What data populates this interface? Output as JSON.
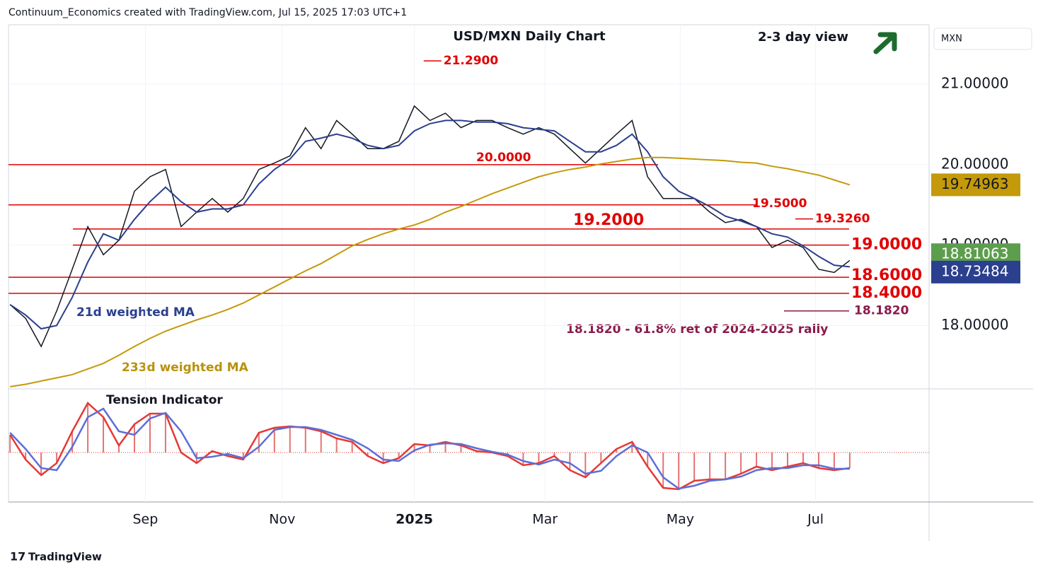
{
  "header": "Continuum_Economics created with TradingView.com, Jul 15, 2025 17:03 UTC+1",
  "footer": "TradingView",
  "chart_data": {
    "type": "line",
    "title": "USD/MXN Daily Chart",
    "subtitle": "2-3 day view",
    "axis_label": "MXN",
    "categories": [
      null,
      null,
      null,
      null,
      null,
      null,
      null,
      null,
      null,
      null,
      null,
      null,
      null,
      null,
      null,
      null,
      null,
      null,
      null,
      null,
      null,
      null,
      null,
      null,
      null,
      null,
      null,
      null,
      null,
      null,
      null,
      null,
      null,
      null,
      null,
      null,
      null,
      null,
      null,
      null,
      null,
      null,
      null,
      null,
      null,
      null,
      null,
      null,
      null,
      null,
      null,
      null,
      null,
      null,
      null
    ],
    "xlim": [
      -0.1,
      59.1
    ],
    "xticks": [
      {
        "value": 8.7,
        "label": "Sep"
      },
      {
        "value": 17.5,
        "label": "Nov"
      },
      {
        "value": 26,
        "label": "2025"
      },
      {
        "value": 34.4,
        "label": "Mar"
      },
      {
        "value": 43.1,
        "label": "May"
      },
      {
        "value": 51.8,
        "label": "Jul"
      }
    ],
    "ylim": [
      17.23,
      21.74
    ],
    "yticks": [
      {
        "value": 21,
        "label": "21.00000"
      },
      {
        "value": 20,
        "label": "20.00000"
      },
      {
        "value": 19,
        "label": "19.00000"
      },
      {
        "value": 18,
        "label": "18.00000"
      }
    ],
    "grid": true,
    "series": [
      {
        "name": "USD/MXN",
        "color": "#131722",
        "values": [
          18.26,
          18.09,
          17.74,
          18.18,
          18.7,
          19.23,
          18.88,
          19.06,
          19.67,
          19.85,
          19.94,
          19.23,
          19.41,
          19.58,
          19.41,
          19.58,
          19.94,
          20.02,
          20.11,
          20.46,
          20.2,
          20.55,
          20.38,
          20.2,
          20.2,
          20.29,
          20.73,
          20.55,
          20.64,
          20.46,
          20.55,
          20.55,
          20.46,
          20.38,
          20.46,
          20.38,
          20.2,
          20.02,
          20.2,
          20.38,
          20.55,
          19.85,
          19.58,
          19.58,
          19.58,
          19.41,
          19.28,
          19.32,
          19.23,
          18.97,
          19.06,
          18.97,
          18.7,
          18.66,
          18.81
        ]
      },
      {
        "name": "21d weighted MA",
        "color": "#2b3f8f",
        "values": [
          18.26,
          18.13,
          17.96,
          18.0,
          18.35,
          18.79,
          19.14,
          19.06,
          19.32,
          19.54,
          19.72,
          19.54,
          19.41,
          19.45,
          19.45,
          19.5,
          19.76,
          19.94,
          20.07,
          20.29,
          20.33,
          20.38,
          20.33,
          20.24,
          20.2,
          20.24,
          20.42,
          20.51,
          20.55,
          20.55,
          20.53,
          20.53,
          20.51,
          20.46,
          20.44,
          20.42,
          20.29,
          20.16,
          20.16,
          20.24,
          20.38,
          20.16,
          19.85,
          19.67,
          19.58,
          19.48,
          19.36,
          19.3,
          19.23,
          19.14,
          19.1,
          18.99,
          18.86,
          18.75,
          18.73
        ]
      },
      {
        "name": "233d weighted MA",
        "color": "#c49a0a",
        "values": [
          17.24,
          17.27,
          17.31,
          17.35,
          17.39,
          17.46,
          17.53,
          17.63,
          17.74,
          17.84,
          17.93,
          18.0,
          18.07,
          18.13,
          18.2,
          18.28,
          18.38,
          18.48,
          18.58,
          18.68,
          18.77,
          18.88,
          18.99,
          19.07,
          19.14,
          19.2,
          19.25,
          19.32,
          19.41,
          19.48,
          19.56,
          19.64,
          19.71,
          19.78,
          19.85,
          19.9,
          19.94,
          19.97,
          20.01,
          20.04,
          20.07,
          20.09,
          20.09,
          20.08,
          20.07,
          20.06,
          20.05,
          20.03,
          20.02,
          19.98,
          19.95,
          19.91,
          19.87,
          19.81,
          19.75
        ]
      }
    ],
    "price_badges": [
      {
        "value": 19.74963,
        "label": "19.74963",
        "color": "#c49a0a"
      },
      {
        "value": 18.81063,
        "label": "18.81063",
        "color": "#5d9e4e"
      },
      {
        "value": 18.73484,
        "label": "18.73484",
        "color": "#2b3f8f"
      }
    ],
    "levels": [
      {
        "value": 20,
        "label": "20.0000"
      },
      {
        "value": 19.5,
        "label": "19.5000"
      },
      {
        "value": 19.2,
        "label": "19.2000"
      },
      {
        "value": 19,
        "label": "19.0000"
      },
      {
        "value": 18.6,
        "label": "18.6000"
      },
      {
        "value": 18.4,
        "label": "18.4000"
      },
      {
        "value": 18.182,
        "label": "18.1820"
      }
    ],
    "peaks": [
      {
        "value": 21.29,
        "label": "21.2900"
      },
      {
        "value": 19.326,
        "label": "19.3260"
      }
    ],
    "annotations": [
      "21d weighted MA",
      "233d weighted MA",
      "18.1820 - 61.8% ret of 2024-2025 rally"
    ],
    "indicator": {
      "title": "Tension Indicator",
      "series": [
        {
          "color": "#e53935",
          "values": [
            25,
            -10,
            -32,
            -15,
            30,
            70,
            50,
            10,
            40,
            55,
            55,
            0,
            -15,
            2,
            -5,
            -10,
            28,
            35,
            37,
            35,
            30,
            20,
            15,
            -5,
            -15,
            -8,
            12,
            10,
            15,
            10,
            2,
            0,
            -5,
            -18,
            -15,
            -5,
            -25,
            -35,
            -15,
            5,
            15,
            -20,
            -50,
            -52,
            -40,
            -38,
            -38,
            -30,
            -20,
            -25,
            -20,
            -15,
            -22,
            -25,
            -22
          ]
        },
        {
          "color": "#5b6fd6",
          "values": [
            28,
            5,
            -22,
            -25,
            8,
            50,
            62,
            30,
            25,
            48,
            56,
            30,
            -8,
            -6,
            -2,
            -8,
            8,
            32,
            36,
            36,
            32,
            25,
            18,
            6,
            -10,
            -12,
            3,
            11,
            13,
            12,
            6,
            1,
            -3,
            -12,
            -17,
            -10,
            -15,
            -30,
            -26,
            -5,
            10,
            0,
            -35,
            -51,
            -47,
            -40,
            -38,
            -34,
            -25,
            -22,
            -22,
            -18,
            -18,
            -23,
            -23
          ]
        }
      ]
    }
  }
}
